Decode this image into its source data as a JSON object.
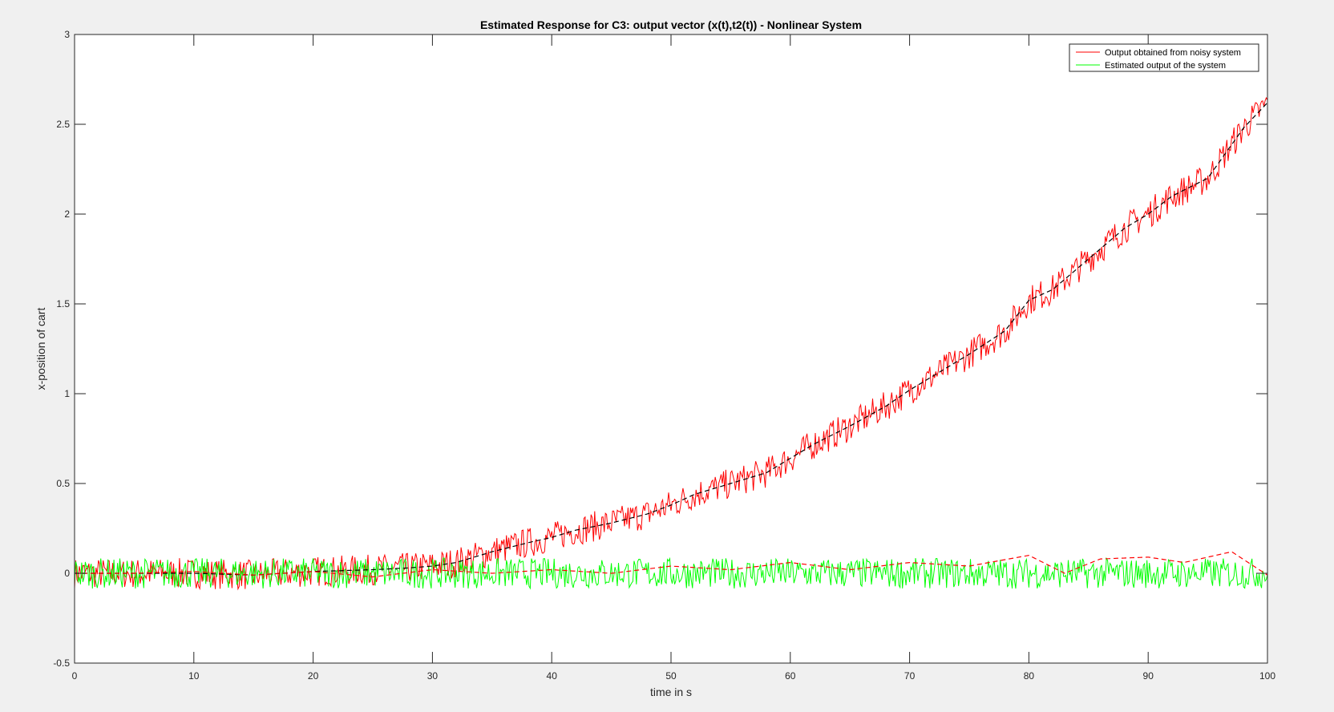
{
  "chart_data": {
    "type": "line",
    "title": "Estimated Response for C3: output vector (x(t),t2(t)) - Nonlinear System",
    "xlabel": "time in s",
    "ylabel": "x-position of cart",
    "xlim": [
      0,
      100
    ],
    "ylim": [
      -0.5,
      3
    ],
    "xticks": [
      "0",
      "10",
      "20",
      "30",
      "40",
      "50",
      "60",
      "70",
      "80",
      "90",
      "100"
    ],
    "yticks": [
      "-0.5",
      "0",
      "0.5",
      "1",
      "1.5",
      "2",
      "2.5",
      "3"
    ],
    "grid": false,
    "legend_position": "top-right",
    "series": [
      {
        "name": "Output obtained from noisy system",
        "color": "#ff0000",
        "style": "solid",
        "noisy": true,
        "x": [
          0,
          5,
          10,
          15,
          20,
          25,
          28,
          30,
          32,
          35,
          38,
          40,
          42,
          45,
          48,
          50,
          52,
          55,
          58,
          60,
          62,
          65,
          68,
          70,
          72,
          75,
          78,
          80,
          82,
          85,
          88,
          90,
          92,
          95,
          98,
          100
        ],
        "y": [
          0,
          0,
          0,
          -0.01,
          0.01,
          0.02,
          0.03,
          0.04,
          0.06,
          0.12,
          0.17,
          0.2,
          0.24,
          0.28,
          0.33,
          0.38,
          0.44,
          0.5,
          0.56,
          0.64,
          0.72,
          0.82,
          0.93,
          1.02,
          1.1,
          1.22,
          1.35,
          1.52,
          1.58,
          1.75,
          1.92,
          2.0,
          2.1,
          2.2,
          2.48,
          2.62
        ]
      },
      {
        "name": "Estimated output of the system",
        "color": "#00ff00",
        "style": "solid",
        "noisy": true,
        "x": [
          0,
          5,
          10,
          15,
          20,
          25,
          30,
          35,
          40,
          45,
          50,
          55,
          60,
          65,
          70,
          75,
          80,
          85,
          90,
          95,
          100
        ],
        "y": [
          0,
          0,
          0,
          0,
          0,
          0,
          0,
          0,
          0,
          0,
          0,
          0,
          0,
          0,
          0,
          0,
          0,
          0,
          0,
          0,
          0
        ]
      },
      {
        "name": "",
        "color": "#000000",
        "style": "dashed",
        "noisy": false,
        "x": [
          0,
          5,
          10,
          15,
          20,
          25,
          28,
          30,
          32,
          35,
          38,
          40,
          42,
          45,
          48,
          50,
          52,
          55,
          58,
          60,
          62,
          65,
          68,
          70,
          72,
          75,
          78,
          80,
          82,
          85,
          88,
          90,
          92,
          95,
          98,
          100
        ],
        "y": [
          0,
          0,
          0,
          -0.01,
          0.01,
          0.02,
          0.03,
          0.04,
          0.06,
          0.12,
          0.17,
          0.2,
          0.24,
          0.28,
          0.33,
          0.38,
          0.44,
          0.5,
          0.56,
          0.64,
          0.72,
          0.82,
          0.93,
          1.02,
          1.1,
          1.22,
          1.35,
          1.52,
          1.58,
          1.75,
          1.92,
          2.0,
          2.1,
          2.2,
          2.48,
          2.62
        ]
      },
      {
        "name": "",
        "color": "#ff0000",
        "style": "dashed",
        "noisy": false,
        "x": [
          0,
          5,
          10,
          15,
          20,
          25,
          30,
          35,
          40,
          45,
          50,
          55,
          60,
          65,
          70,
          75,
          80,
          83,
          86,
          90,
          93,
          97,
          100
        ],
        "y": [
          0,
          0,
          0.01,
          -0.01,
          0.01,
          -0.02,
          0.02,
          0.0,
          0.02,
          0.0,
          0.04,
          0.02,
          0.06,
          0.02,
          0.06,
          0.04,
          0.1,
          0.0,
          0.08,
          0.09,
          0.06,
          0.12,
          -0.01
        ]
      }
    ]
  }
}
